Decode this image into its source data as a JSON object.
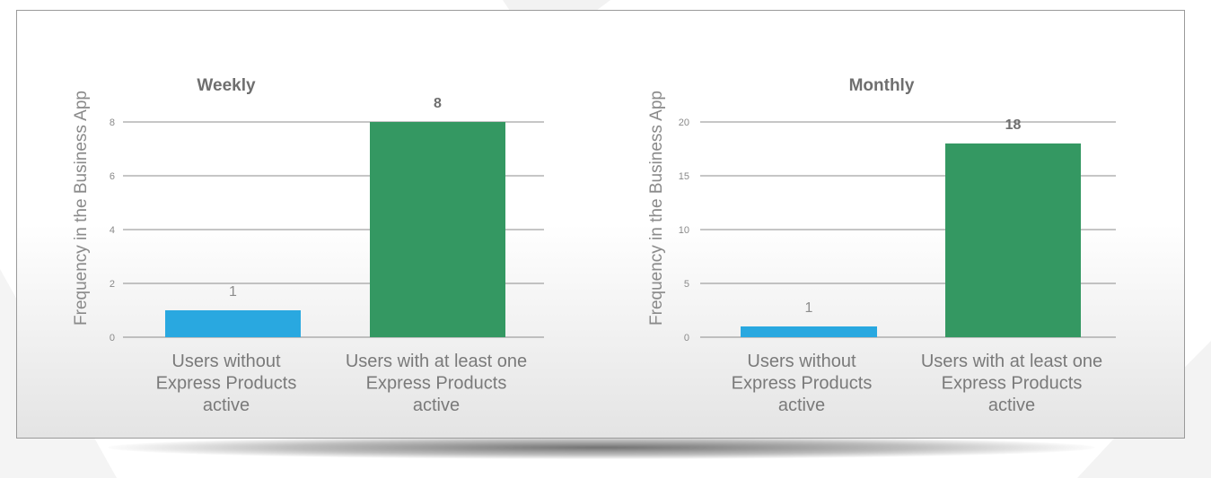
{
  "colors": {
    "series_blue": "#29a8e0",
    "series_green": "#349862"
  },
  "chart_data": [
    {
      "type": "bar",
      "title": "Weekly",
      "ylabel": "Frequency in the Business App",
      "xlabel": "",
      "categories": [
        "Users without\nExpress Products\nactive",
        "Users with at least one\nExpress Products\nactive"
      ],
      "values": [
        1,
        8
      ],
      "data_labels": [
        "1",
        "8"
      ],
      "ylim": [
        0,
        8
      ],
      "yticks": [
        0,
        2,
        4,
        6,
        8
      ],
      "ytick_labels": [
        "0",
        "2",
        "4",
        "6",
        "8"
      ],
      "grid": true,
      "bar_colors": [
        "#29a8e0",
        "#349862"
      ]
    },
    {
      "type": "bar",
      "title": "Monthly",
      "ylabel": "Frequency in the Business App",
      "xlabel": "",
      "categories": [
        "Users without\nExpress Products\nactive",
        "Users with at least one\nExpress Products\nactive"
      ],
      "values": [
        1,
        18
      ],
      "data_labels": [
        "1",
        "18"
      ],
      "ylim": [
        0,
        20
      ],
      "yticks": [
        0,
        5,
        10,
        15,
        20
      ],
      "ytick_labels": [
        "0",
        "5",
        "10",
        "15",
        "20"
      ],
      "grid": true,
      "bar_colors": [
        "#29a8e0",
        "#349862"
      ]
    }
  ]
}
